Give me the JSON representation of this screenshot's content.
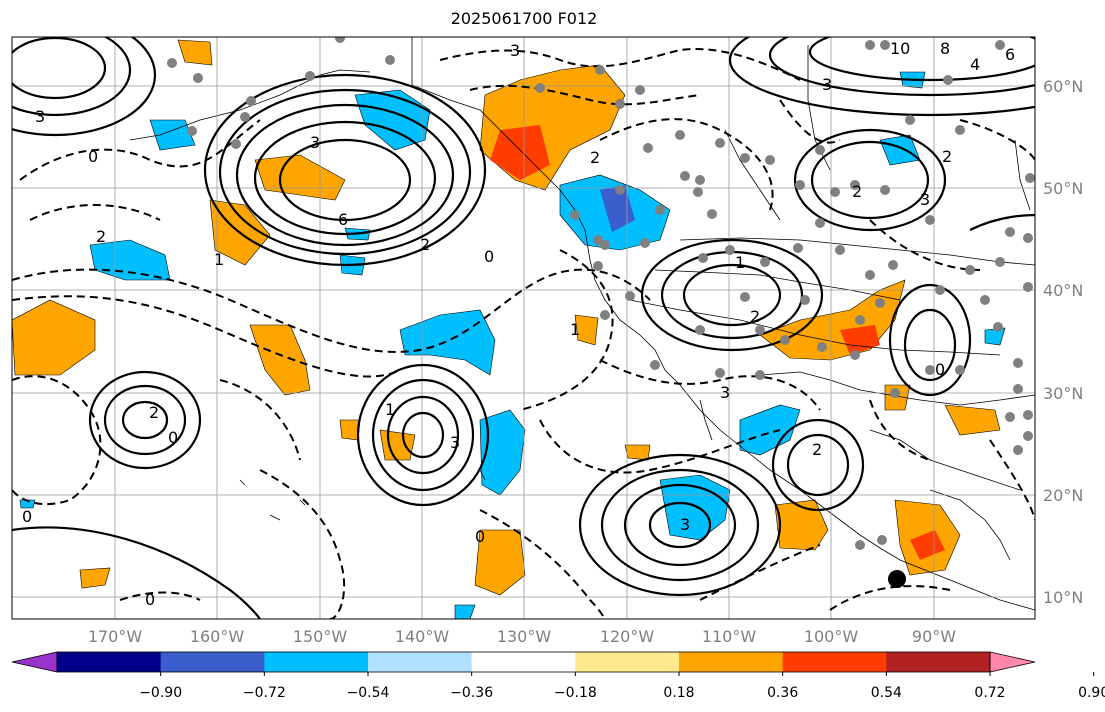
{
  "title": "2025061700 F012",
  "map": {
    "latitude_labels": [
      "60°N",
      "50°N",
      "40°N",
      "30°N",
      "20°N",
      "10°N"
    ],
    "longitude_labels": [
      "170°W",
      "160°W",
      "150°W",
      "140°W",
      "130°W",
      "120°W",
      "110°W",
      "100°W",
      "90°W"
    ],
    "contour_labels": [
      "0",
      "2",
      "6",
      "3",
      "2",
      "1",
      "0",
      "2",
      "3",
      "10",
      "8",
      "6",
      "4",
      "2",
      "3",
      "2",
      "1",
      "3",
      "2",
      "0",
      "1",
      "3",
      "3",
      "2",
      "0",
      "2",
      "0",
      "3",
      "1",
      "0",
      "0",
      "3"
    ],
    "marker": "filled circle"
  },
  "colorbar": {
    "tick_labels": [
      "−0.90",
      "−0.72",
      "−0.54",
      "−0.36",
      "−0.18",
      "0.18",
      "0.36",
      "0.54",
      "0.72",
      "0.90"
    ],
    "colors": [
      "#9933cc",
      "#00008b",
      "#3a5fcd",
      "#00bfff",
      "#b0e2ff",
      "#ffffff",
      "#ffe98c",
      "#ffa500",
      "#ff3d00",
      "#b22222",
      "#ff88aa"
    ],
    "extend": "both"
  }
}
